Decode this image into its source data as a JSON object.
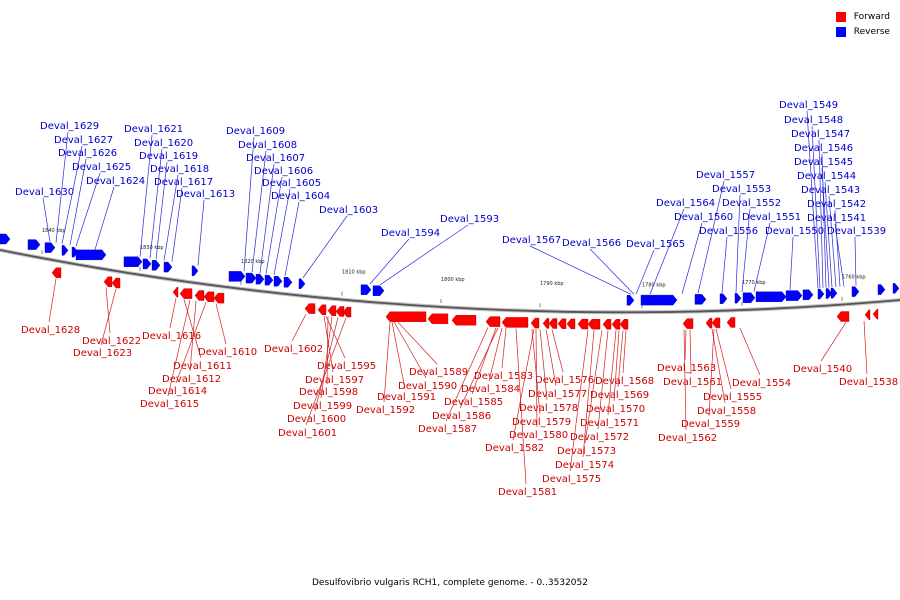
{
  "legend": [
    {
      "label": "Forward",
      "color": "#ff0000"
    },
    {
      "label": "Reverse",
      "color": "#0000ff"
    }
  ],
  "caption": "Desulfovibrio vulgaris RCH1, complete genome. - 0..3532052",
  "colors": {
    "forward": "#ff0000",
    "reverse": "#0000ff",
    "forward_label": "#cc0000",
    "reverse_label": "#0000cc"
  },
  "ticks": [
    "1840 kbp",
    "1830 kbp",
    "1820 kbp",
    "1810 kbp",
    "1800 kbp",
    "1790 kbp",
    "1780 kbp",
    "1770 kbp",
    "1760 kbp"
  ],
  "reverse_genes": [
    "Deval_1630",
    "Deval_1629",
    "Deval_1627",
    "Deval_1626",
    "Deval_1625",
    "Deval_1624",
    "Deval_1621",
    "Deval_1620",
    "Deval_1619",
    "Deval_1618",
    "Deval_1617",
    "Deval_1613",
    "Deval_1609",
    "Deval_1608",
    "Deval_1607",
    "Deval_1606",
    "Deval_1605",
    "Deval_1604",
    "Deval_1603",
    "Deval_1594",
    "Deval_1593",
    "Deval_1567",
    "Deval_1566",
    "Deval_1565",
    "Deval_1564",
    "Deval_1560",
    "Deval_1557",
    "Deval_1556",
    "Deval_1553",
    "Deval_1552",
    "Deval_1551",
    "Deval_1550",
    "Deval_1549",
    "Deval_1548",
    "Deval_1547",
    "Deval_1546",
    "Deval_1545",
    "Deval_1544",
    "Deval_1543",
    "Deval_1542",
    "Deval_1541",
    "Deval_1539"
  ],
  "forward_genes": [
    "Deval_1628",
    "Deval_1622",
    "Deval_1623",
    "Deval_1616",
    "Deval_1610",
    "Deval_1611",
    "Deval_1612",
    "Deval_1614",
    "Deval_1615",
    "Deval_1602",
    "Deval_1595",
    "Deval_1597",
    "Deval_1598",
    "Deval_1599",
    "Deval_1600",
    "Deval_1601",
    "Deval_1589",
    "Deval_1590",
    "Deval_1591",
    "Deval_1592",
    "Deval_1583",
    "Deval_1584",
    "Deval_1585",
    "Deval_1586",
    "Deval_1587",
    "Deval_1576",
    "Deval_1577",
    "Deval_1578",
    "Deval_1579",
    "Deval_1580",
    "Deval_1582",
    "Deval_1581",
    "Deval_1568",
    "Deval_1569",
    "Deval_1570",
    "Deval_1571",
    "Deval_1572",
    "Deval_1573",
    "Deval_1574",
    "Deval_1575",
    "Deval_1563",
    "Deval_1561",
    "Deval_1562",
    "Deval_1555",
    "Deval_1558",
    "Deval_1559",
    "Deval_1554",
    "Deval_1540",
    "Deval_1538"
  ]
}
